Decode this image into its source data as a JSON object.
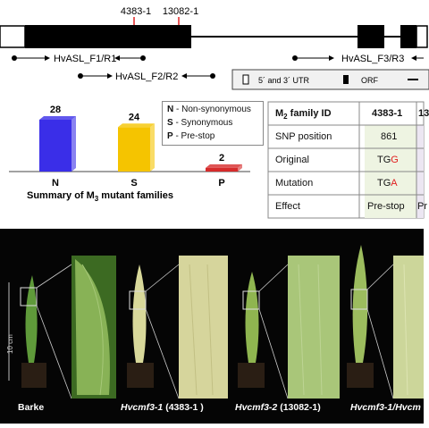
{
  "gene": {
    "allele_labels": [
      "4383-1",
      "13082-1"
    ],
    "primers": [
      "HvASL_F1/R1",
      "HvASL_F2/R2",
      "HvASL_F3/R3"
    ],
    "legend": {
      "utr": "5´ and 3´ UTR",
      "orf": "ORF"
    },
    "colors": {
      "exon": "#000000",
      "arrow": "#e02020"
    }
  },
  "chart": {
    "title_main": "Summary of M",
    "title_sub": "3",
    "title_rest": " mutant families",
    "key": [
      "N - Non-synonymous",
      "S - Synonymous",
      "P - Pre-stop"
    ]
  },
  "chart_data": {
    "type": "bar",
    "categories": [
      "N",
      "S",
      "P"
    ],
    "values": [
      28,
      24,
      2
    ],
    "colors": [
      "#3a2ee8",
      "#f5c400",
      "#d62b2b"
    ],
    "title": "Summary of M3 mutant families"
  },
  "table": {
    "header_main": "M",
    "header_sub": "2",
    "header_rest": " family ID",
    "rows": [
      {
        "label": "SNP position",
        "v1": "861",
        "v2": ""
      },
      {
        "label": "Original",
        "v1_pre": "TG",
        "v1_hl": "G",
        "v2": ""
      },
      {
        "label": "Mutation",
        "v1_pre": "TG",
        "v1_hl": "A",
        "v2": ""
      },
      {
        "label": "Effect",
        "v1": "Pre-stop",
        "v2": "Pr"
      }
    ],
    "col1": "4383-1",
    "col2_partial": "13"
  },
  "photo": {
    "scale": "10 cm",
    "labels": [
      {
        "pre": "Barke",
        "italic": "",
        "post": ""
      },
      {
        "pre": "",
        "italic": "Hvcmf3-1",
        "post": " (4383-1 )"
      },
      {
        "pre": "",
        "italic": "Hvcmf3-2",
        "post": " (13082-1)"
      },
      {
        "pre": "",
        "italic": "Hvcmf3-1/Hvcm",
        "post": ""
      }
    ]
  }
}
